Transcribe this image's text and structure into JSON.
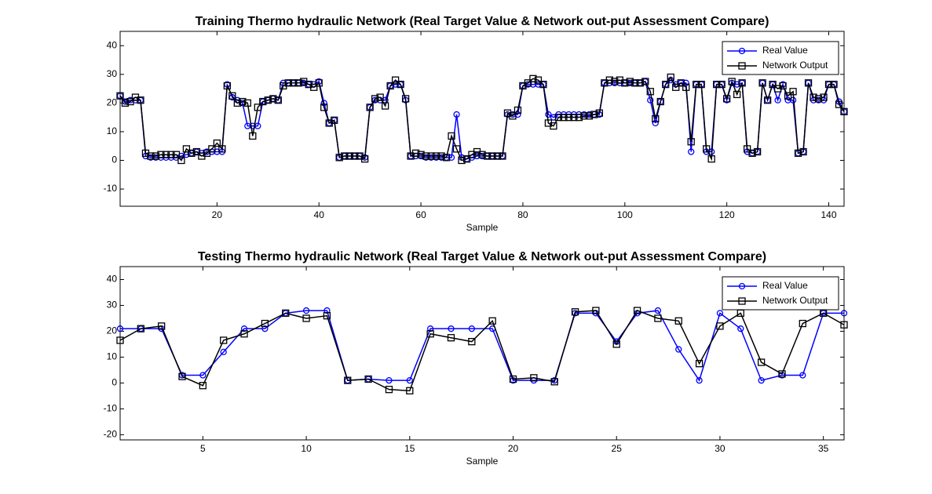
{
  "chart_data": [
    {
      "type": "line",
      "title": "Training Thermo hydraulic Network (Real Target Value & Network out-put Assessment Compare)",
      "xlabel": "Sample",
      "x": [
        1,
        2,
        3,
        4,
        5,
        6,
        7,
        8,
        9,
        10,
        11,
        12,
        13,
        14,
        15,
        16,
        17,
        18,
        19,
        20,
        21,
        22,
        23,
        24,
        25,
        26,
        27,
        28,
        29,
        30,
        31,
        32,
        33,
        34,
        35,
        36,
        37,
        38,
        39,
        40,
        41,
        42,
        43,
        44,
        45,
        46,
        47,
        48,
        49,
        50,
        51,
        52,
        53,
        54,
        55,
        56,
        57,
        58,
        59,
        60,
        61,
        62,
        63,
        64,
        65,
        66,
        67,
        68,
        69,
        70,
        71,
        72,
        73,
        74,
        75,
        76,
        77,
        78,
        79,
        80,
        81,
        82,
        83,
        84,
        85,
        86,
        87,
        88,
        89,
        90,
        91,
        92,
        93,
        94,
        95,
        96,
        97,
        98,
        99,
        100,
        101,
        102,
        103,
        104,
        105,
        106,
        107,
        108,
        109,
        110,
        111,
        112,
        113,
        114,
        115,
        116,
        117,
        118,
        119,
        120,
        121,
        122,
        123,
        124,
        125,
        126,
        127,
        128,
        129,
        130,
        131,
        132,
        133,
        134,
        135,
        136,
        137,
        138,
        139,
        140,
        141,
        142,
        143
      ],
      "series": [
        {
          "name": "Real Value",
          "color": "#0000ff",
          "marker": "circle",
          "values": [
            22.5,
            20.5,
            21,
            21,
            21,
            1.5,
            1,
            1,
            1,
            1,
            1,
            1,
            1.5,
            2,
            2.5,
            3,
            2.5,
            3,
            3,
            3,
            3,
            26.5,
            22,
            21,
            20,
            12,
            12,
            12,
            20.5,
            21,
            21.5,
            21,
            27,
            27,
            27,
            27,
            27,
            26.5,
            26.5,
            27.5,
            20,
            13,
            14,
            1,
            1.5,
            1.5,
            1.5,
            1.5,
            1,
            18.5,
            21,
            21,
            21,
            26,
            26.5,
            26.5,
            21,
            1.5,
            1.5,
            1.5,
            1,
            1,
            1,
            1,
            1,
            1,
            16,
            1,
            0.5,
            1,
            1.5,
            1.5,
            1.5,
            1.5,
            1.5,
            1.5,
            16,
            16,
            16,
            26,
            26.5,
            26.5,
            26.5,
            26.5,
            16,
            15,
            16,
            16,
            16,
            16,
            16,
            16,
            16,
            16,
            16,
            27,
            27,
            27,
            27,
            27,
            27,
            27,
            27,
            27.5,
            21,
            13,
            20.5,
            26.5,
            28,
            26.5,
            27,
            27,
            3,
            26.5,
            26.5,
            3,
            3,
            26.5,
            26.5,
            21,
            27,
            26.5,
            27,
            3,
            2.5,
            3,
            27,
            21,
            26.5,
            21,
            26.5,
            21,
            21,
            2.5,
            3,
            27,
            21,
            21,
            21,
            26.5,
            26.5,
            20.5,
            17
          ]
        },
        {
          "name": "Network Output",
          "color": "#000000",
          "marker": "square",
          "values": [
            22.5,
            20,
            20.5,
            22,
            21,
            2.5,
            1.5,
            1.5,
            2,
            2,
            2,
            2,
            0,
            4,
            2.5,
            3,
            1.5,
            2.5,
            4,
            6,
            4,
            26,
            22.5,
            20,
            20.5,
            20,
            8.5,
            18.5,
            20.5,
            21,
            21.5,
            21,
            26,
            27,
            27,
            27,
            27.5,
            26.5,
            25.5,
            27,
            18.5,
            13,
            14,
            1,
            1.5,
            1.5,
            1.5,
            1.5,
            0.5,
            18.5,
            21.5,
            22,
            19,
            26,
            28,
            26.5,
            21.5,
            1.5,
            2.5,
            2,
            1.5,
            1.5,
            1.5,
            1.5,
            1,
            8.5,
            4,
            0,
            0.5,
            2,
            3,
            2,
            1.5,
            1.5,
            1.5,
            1.5,
            16.5,
            15.5,
            17.5,
            26,
            27,
            28.5,
            28,
            26.5,
            13,
            12,
            15,
            15,
            15,
            15,
            15,
            15.5,
            15.5,
            16,
            16.5,
            27,
            28,
            27.5,
            28,
            27,
            27.5,
            27,
            27,
            27.5,
            24,
            14.5,
            20.5,
            26.5,
            29,
            25.5,
            27,
            25.5,
            6.5,
            26.5,
            26.5,
            4,
            0.5,
            26.5,
            26.5,
            21.5,
            27.5,
            23,
            27,
            4,
            2.5,
            3,
            27,
            21,
            26.5,
            25,
            26,
            22.5,
            24,
            2.5,
            3,
            27,
            22,
            21.5,
            22,
            26.5,
            26.5,
            19.5,
            17
          ]
        }
      ],
      "xlim": [
        1,
        143
      ],
      "xticks": [
        20,
        40,
        60,
        80,
        100,
        120,
        140
      ],
      "ylim": [
        -16,
        45
      ],
      "yticks": [
        -10,
        0,
        10,
        20,
        30,
        40
      ],
      "legend": "upper right"
    },
    {
      "type": "line",
      "title": "Testing Thermo hydraulic Network (Real Target Value & Network out-put Assessment Compare)",
      "xlabel": "Sample",
      "x": [
        1,
        2,
        3,
        4,
        5,
        6,
        7,
        8,
        9,
        10,
        11,
        12,
        13,
        14,
        15,
        16,
        17,
        18,
        19,
        20,
        21,
        22,
        23,
        24,
        25,
        26,
        27,
        28,
        29,
        30,
        31,
        32,
        33,
        34,
        35,
        36
      ],
      "series": [
        {
          "name": "Real Value",
          "color": "#0000ff",
          "marker": "circle",
          "values": [
            21,
            21,
            21,
            3,
            3,
            12,
            21,
            21,
            27,
            28,
            28,
            1,
            1.5,
            1,
            1,
            21,
            21,
            21,
            21,
            1,
            1,
            1,
            27,
            27,
            16,
            27,
            28,
            13,
            1,
            27,
            21,
            1,
            3,
            3,
            27,
            27
          ]
        },
        {
          "name": "Network Output",
          "color": "#000000",
          "marker": "square",
          "values": [
            16.5,
            21,
            22,
            2.5,
            -1,
            16.5,
            19,
            23,
            27,
            25,
            26,
            1,
            1.5,
            -2.5,
            -3,
            19,
            17.5,
            16,
            24,
            1.5,
            2,
            0.5,
            27.5,
            28,
            15,
            28,
            25,
            24,
            7.5,
            22,
            27,
            8,
            3.5,
            23,
            27,
            22.5
          ]
        }
      ],
      "xlim": [
        1,
        36
      ],
      "xticks": [
        5,
        10,
        15,
        20,
        25,
        30,
        35
      ],
      "ylim": [
        -22,
        45
      ],
      "yticks": [
        -20,
        -10,
        0,
        10,
        20,
        30,
        40
      ],
      "legend": "upper right"
    }
  ]
}
